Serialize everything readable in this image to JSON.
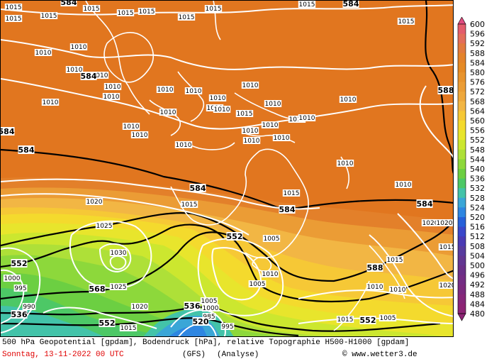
{
  "header": {
    "description": "500 hPa Geopotential [gpdam], Bodendruck [hPa], relative Topographie H500-H1000 [gpdam]",
    "date": "Sonntag, 13-11-2022  00 UTC",
    "model": "(GFS)",
    "kind": "(Analyse)",
    "credit": "© www.wetter3.de"
  },
  "legend": {
    "values": [
      "600",
      "596",
      "592",
      "588",
      "584",
      "580",
      "576",
      "572",
      "568",
      "564",
      "560",
      "556",
      "552",
      "548",
      "544",
      "540",
      "536",
      "532",
      "528",
      "524",
      "520",
      "516",
      "512",
      "508",
      "504",
      "500",
      "496",
      "492",
      "488",
      "484",
      "480"
    ],
    "colors": [
      "#e04b7f",
      "#e35c6c",
      "#e36d5a",
      "#e27a3e",
      "#e4832a",
      "#e58a25",
      "#e8942d",
      "#eb9d35",
      "#eea83c",
      "#f2b644",
      "#f6c836",
      "#f4da2d",
      "#e8e52c",
      "#cce72f",
      "#aee038",
      "#8dd83b",
      "#6ccf42",
      "#4dc866",
      "#43c3a9",
      "#3aa6d7",
      "#2e86e1",
      "#2660d9",
      "#3a47ca",
      "#4a3ab4",
      "#573b9e",
      "#623691",
      "#6a3088",
      "#742d84",
      "#7b2a7e",
      "#862779",
      "#8d2474"
    ]
  },
  "map": {
    "pressure_labels": [
      {
        "t": "1015"
      },
      {
        "t": "1015"
      },
      {
        "t": "1015"
      },
      {
        "t": "1015"
      },
      {
        "t": "1015"
      },
      {
        "t": "1015"
      },
      {
        "t": "1015"
      },
      {
        "t": "1015"
      },
      {
        "t": "1015"
      },
      {
        "t": "1010"
      },
      {
        "t": "1010"
      },
      {
        "t": "1010"
      },
      {
        "t": "1010"
      },
      {
        "t": "1010"
      },
      {
        "t": "1010"
      },
      {
        "t": "1010"
      },
      {
        "t": "1010"
      },
      {
        "t": "1010"
      },
      {
        "t": "1010"
      },
      {
        "t": "1010"
      },
      {
        "t": "1010"
      },
      {
        "t": "1010"
      },
      {
        "t": "1010"
      },
      {
        "t": "1015"
      },
      {
        "t": "1010"
      },
      {
        "t": "1010"
      },
      {
        "t": "1010"
      },
      {
        "t": "1010"
      },
      {
        "t": "1010"
      },
      {
        "t": "1010"
      },
      {
        "t": "1010"
      },
      {
        "t": "1010"
      },
      {
        "t": "1010"
      },
      {
        "t": "1010"
      },
      {
        "t": "1010"
      },
      {
        "t": "1015"
      },
      {
        "t": "1020"
      },
      {
        "t": "1015"
      },
      {
        "t": "1025"
      },
      {
        "t": "1030"
      },
      {
        "t": "1020"
      },
      {
        "t": "1025"
      },
      {
        "t": "1020"
      },
      {
        "t": "1010"
      },
      {
        "t": "1000"
      },
      {
        "t": "995"
      },
      {
        "t": "990"
      },
      {
        "t": "1015"
      },
      {
        "t": "1010"
      },
      {
        "t": "1005"
      },
      {
        "t": "1005"
      },
      {
        "t": "1015"
      },
      {
        "t": "1010"
      },
      {
        "t": "1010"
      },
      {
        "t": "1005"
      },
      {
        "t": "1015"
      },
      {
        "t": "1015"
      },
      {
        "t": "1020"
      },
      {
        "t": "1015"
      },
      {
        "t": "1020"
      },
      {
        "t": "1005"
      },
      {
        "t": "1000"
      },
      {
        "t": "985"
      },
      {
        "t": "995"
      },
      {
        "t": "1010"
      },
      {
        "t": "1010"
      }
    ],
    "geopotential_labels": [
      {
        "t": "584"
      },
      {
        "t": "584"
      },
      {
        "t": "584"
      },
      {
        "t": "584"
      },
      {
        "t": "584"
      },
      {
        "t": "584"
      },
      {
        "t": "584"
      },
      {
        "t": "584"
      },
      {
        "t": "588"
      },
      {
        "t": "552"
      },
      {
        "t": "552"
      },
      {
        "t": "568"
      },
      {
        "t": "536"
      },
      {
        "t": "552"
      },
      {
        "t": "536"
      },
      {
        "t": "520"
      },
      {
        "t": "588"
      },
      {
        "t": "552"
      }
    ]
  }
}
